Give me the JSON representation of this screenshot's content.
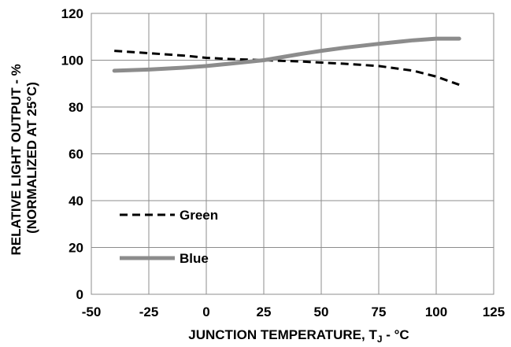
{
  "chart_data": {
    "type": "line",
    "title": "",
    "xlabel": "JUNCTION TEMPERATURE, T",
    "xlabel_subscript": "J",
    "xlabel_suffix": " - °C",
    "ylabel_line1": "RELATIVE LIGHT OUTPUT - %",
    "ylabel_line2": "(NORMALIZED AT 25°C)",
    "xlim": [
      -50,
      125
    ],
    "ylim": [
      0,
      120
    ],
    "xticks": [
      -50,
      -25,
      0,
      25,
      50,
      75,
      100,
      125
    ],
    "yticks": [
      0,
      20,
      40,
      60,
      80,
      100,
      120
    ],
    "grid": true,
    "legend_position": "lower-left",
    "series": [
      {
        "name": "Green",
        "style": "dashed",
        "color": "#000000",
        "x": [
          -40,
          -25,
          -10,
          0,
          10,
          25,
          40,
          50,
          60,
          75,
          90,
          100,
          110
        ],
        "y": [
          104,
          103,
          102,
          101,
          100.5,
          100,
          99.5,
          99,
          98.5,
          97.5,
          95.5,
          93,
          89.5
        ]
      },
      {
        "name": "Blue",
        "style": "solid",
        "color": "#8c8c8c",
        "x": [
          -40,
          -25,
          -10,
          0,
          10,
          25,
          40,
          50,
          60,
          75,
          90,
          100,
          110
        ],
        "y": [
          95.5,
          96,
          96.8,
          97.5,
          98.5,
          100,
          102.5,
          104,
          105.3,
          107,
          108.5,
          109.2,
          109.2
        ]
      }
    ]
  }
}
